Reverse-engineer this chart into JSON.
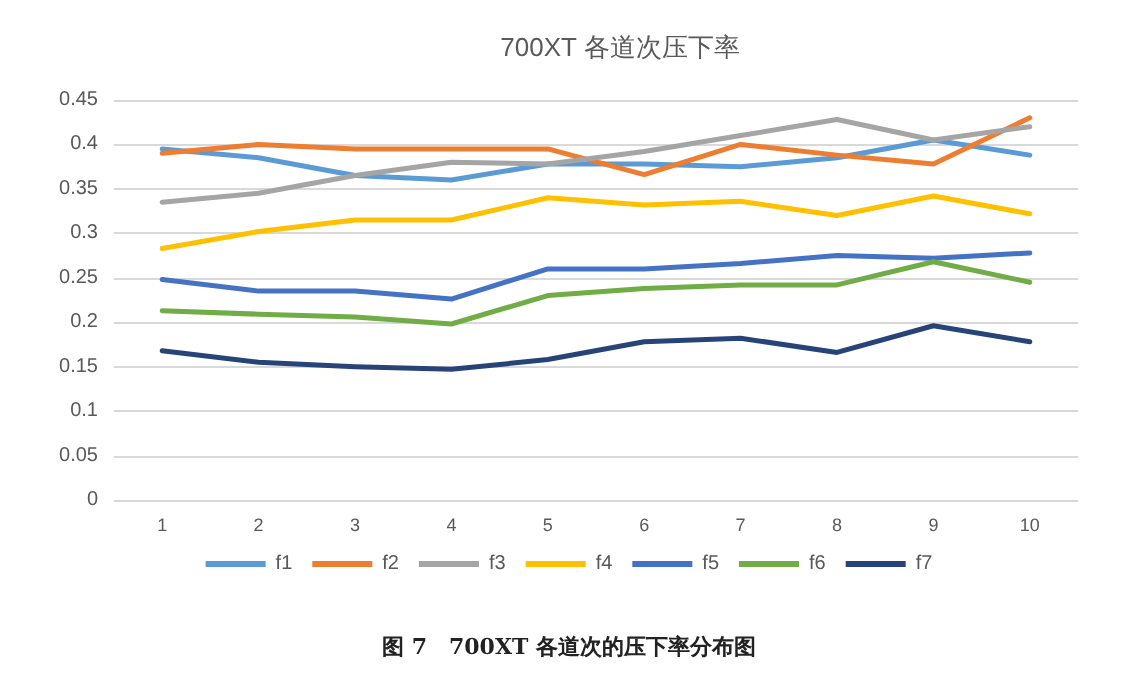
{
  "chart_data": {
    "type": "line",
    "title": "700XT 各道次压下率",
    "categories": [
      "1",
      "2",
      "3",
      "4",
      "5",
      "6",
      "7",
      "8",
      "9",
      "10"
    ],
    "series": [
      {
        "name": "f1",
        "color": "#5b9bd5",
        "values": [
          0.395,
          0.385,
          0.365,
          0.36,
          0.378,
          0.378,
          0.375,
          0.385,
          0.405,
          0.388
        ]
      },
      {
        "name": "f2",
        "color": "#ed7d31",
        "values": [
          0.39,
          0.4,
          0.395,
          0.395,
          0.395,
          0.366,
          0.4,
          0.388,
          0.378,
          0.43
        ]
      },
      {
        "name": "f3",
        "color": "#a5a5a5",
        "values": [
          0.335,
          0.345,
          0.365,
          0.38,
          0.378,
          0.392,
          0.41,
          0.428,
          0.405,
          0.42
        ]
      },
      {
        "name": "f4",
        "color": "#ffc000",
        "values": [
          0.283,
          0.302,
          0.315,
          0.315,
          0.34,
          0.332,
          0.336,
          0.32,
          0.342,
          0.322
        ]
      },
      {
        "name": "f5",
        "color": "#4472c4",
        "values": [
          0.248,
          0.235,
          0.235,
          0.226,
          0.26,
          0.26,
          0.266,
          0.275,
          0.272,
          0.278
        ]
      },
      {
        "name": "f6",
        "color": "#70ad47",
        "values": [
          0.213,
          0.209,
          0.206,
          0.198,
          0.23,
          0.238,
          0.242,
          0.242,
          0.268,
          0.245
        ]
      },
      {
        "name": "f7",
        "color": "#264478",
        "values": [
          0.168,
          0.155,
          0.15,
          0.147,
          0.158,
          0.178,
          0.182,
          0.166,
          0.196,
          0.178
        ]
      }
    ],
    "ylim": [
      0,
      0.45
    ],
    "yticks": [
      0,
      0.05,
      0.1,
      0.15,
      0.2,
      0.25,
      0.3,
      0.35,
      0.4,
      0.45
    ],
    "grid": "y",
    "legend": "bottom",
    "marker": "none",
    "line_style": "solid",
    "annotations": [
      "图 7　700XT 各道次的压下率分布图"
    ]
  }
}
